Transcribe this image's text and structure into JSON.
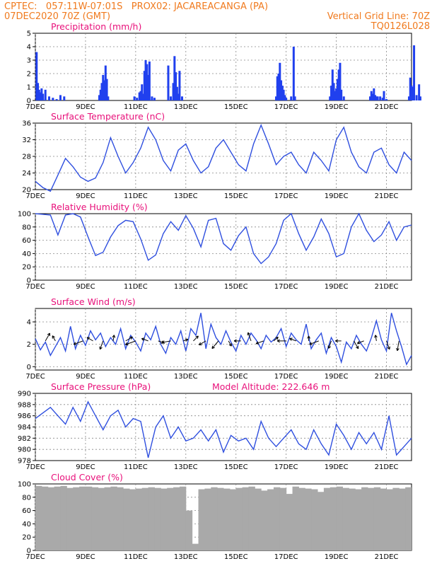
{
  "header": {
    "line1": "CPTEC:   057:11W-07:01S   PROX02: JACAREACANGA (PA)",
    "line2_left": "07DEC2020 70Z (GMT)",
    "line2_right": "Vertical Grid Line: 70Z",
    "line3_right": "TQ0126L028"
  },
  "x_days": [
    "7DEC",
    "9DEC",
    "11DEC",
    "13DEC",
    "15DEC",
    "17DEC",
    "19DEC",
    "21DEC"
  ],
  "colors": {
    "line": "#2f4fdf",
    "bar": "#2040ee",
    "cloud": "#a9a9a9",
    "title": "#e8107a",
    "header": "#f07a1e"
  },
  "chart_data": [
    {
      "type": "bar",
      "title": "Precipitation (mm/h)",
      "ylim": [
        0,
        5
      ],
      "yticks": [
        0,
        1,
        2,
        3,
        4,
        5
      ],
      "x": [
        0.05,
        0.1,
        0.15,
        0.2,
        0.25,
        0.3,
        0.4,
        0.55,
        0.7,
        0.85,
        1.0,
        1.15,
        2.55,
        2.6,
        2.65,
        2.7,
        2.75,
        2.8,
        2.85,
        2.9,
        3.95,
        4.05,
        4.15,
        4.2,
        4.25,
        4.3,
        4.35,
        4.4,
        4.45,
        4.5,
        4.55,
        4.65,
        4.75,
        5.3,
        5.4,
        5.5,
        5.55,
        5.6,
        5.65,
        5.7,
        5.75,
        5.85,
        9.6,
        9.65,
        9.7,
        9.75,
        9.8,
        9.85,
        9.9,
        9.95,
        10.0,
        10.2,
        10.3,
        10.35,
        11.75,
        11.8,
        11.85,
        11.9,
        11.95,
        12.0,
        12.05,
        12.1,
        12.15,
        12.2,
        12.3,
        13.35,
        13.4,
        13.45,
        13.5,
        13.55,
        13.6,
        13.65,
        13.75,
        13.85,
        13.9,
        14.0,
        14.9,
        14.95,
        15.0,
        15.05,
        15.1,
        15.2,
        15.3,
        15.35
      ],
      "values": [
        3.6,
        1.3,
        0.8,
        0.6,
        0.9,
        0.5,
        0.8,
        0.3,
        0.2,
        0.1,
        0.4,
        0.3,
        0.4,
        0.8,
        1.3,
        1.9,
        1.5,
        2.6,
        1.6,
        0.3,
        0.3,
        0.2,
        0.6,
        0.7,
        1.2,
        0.5,
        2.2,
        3.0,
        2.7,
        1.9,
        2.9,
        0.3,
        0.2,
        2.6,
        0.3,
        1.3,
        3.3,
        2.1,
        1.0,
        0.5,
        2.2,
        0.3,
        0.3,
        1.8,
        2.0,
        2.8,
        1.5,
        1.1,
        0.8,
        0.4,
        0.2,
        0.3,
        4.0,
        0.3,
        0.3,
        1.1,
        2.3,
        1.3,
        0.7,
        0.9,
        1.6,
        2.3,
        2.8,
        0.8,
        0.3,
        0.3,
        0.7,
        0.5,
        0.9,
        0.4,
        0.3,
        0.3,
        0.3,
        0.2,
        0.7,
        0.1,
        0.3,
        1.7,
        1.1,
        1.0,
        4.1,
        0.4,
        1.2,
        0.3
      ]
    },
    {
      "type": "line",
      "title": "Surface Temperature (nC)",
      "ylim": [
        20,
        36
      ],
      "yticks": [
        20,
        24,
        28,
        32,
        36
      ],
      "x": [
        0,
        0.3,
        0.6,
        0.9,
        1.2,
        1.5,
        1.8,
        2.1,
        2.4,
        2.7,
        3.0,
        3.3,
        3.6,
        3.9,
        4.2,
        4.5,
        4.8,
        5.1,
        5.4,
        5.7,
        6.0,
        6.3,
        6.6,
        6.9,
        7.2,
        7.5,
        7.8,
        8.1,
        8.4,
        8.7,
        9.0,
        9.3,
        9.6,
        9.9,
        10.2,
        10.5,
        10.8,
        11.1,
        11.4,
        11.7,
        12.0,
        12.3,
        12.6,
        12.9,
        13.2,
        13.5,
        13.8,
        14.1,
        14.4,
        14.7,
        15.0
      ],
      "values": [
        22,
        20.5,
        19.6,
        23.5,
        27.5,
        25.5,
        23,
        22,
        22.8,
        26.5,
        32.5,
        28,
        24,
        26.5,
        30,
        35,
        32,
        27,
        24.5,
        29.5,
        31,
        27,
        24,
        25.5,
        30,
        32,
        29,
        26,
        24.5,
        31,
        35.5,
        31,
        26,
        28,
        29,
        26,
        24,
        29,
        27,
        24.5,
        32,
        35,
        29,
        25.5,
        24,
        29,
        30,
        26,
        24,
        29,
        27
      ]
    },
    {
      "type": "line",
      "title": "Relative Humidity (%)",
      "ylim": [
        0,
        100
      ],
      "yticks": [
        0,
        20,
        40,
        60,
        80,
        100
      ],
      "x": [
        0,
        0.3,
        0.6,
        0.9,
        1.2,
        1.5,
        1.8,
        2.1,
        2.4,
        2.7,
        3.0,
        3.3,
        3.6,
        3.9,
        4.2,
        4.5,
        4.8,
        5.1,
        5.4,
        5.7,
        6.0,
        6.3,
        6.6,
        6.9,
        7.2,
        7.5,
        7.8,
        8.1,
        8.4,
        8.7,
        9.0,
        9.3,
        9.6,
        9.9,
        10.2,
        10.5,
        10.8,
        11.1,
        11.4,
        11.7,
        12.0,
        12.3,
        12.6,
        12.9,
        13.2,
        13.5,
        13.8,
        14.1,
        14.4,
        14.7,
        15.0
      ],
      "values": [
        100,
        99,
        98,
        68,
        98,
        100,
        95,
        65,
        37,
        42,
        65,
        82,
        90,
        88,
        62,
        30,
        38,
        70,
        88,
        75,
        97,
        78,
        50,
        90,
        93,
        55,
        45,
        67,
        80,
        40,
        25,
        35,
        55,
        90,
        100,
        70,
        45,
        65,
        92,
        70,
        35,
        40,
        80,
        100,
        75,
        58,
        68,
        88,
        60,
        80,
        83
      ]
    },
    {
      "type": "line",
      "title": "Surface Wind (m/s)",
      "ylim": [
        -0.3,
        5.2
      ],
      "yticks": [
        0,
        2,
        4
      ],
      "x": [
        0,
        0.2,
        0.4,
        0.6,
        0.8,
        1.0,
        1.2,
        1.4,
        1.6,
        1.8,
        2.0,
        2.2,
        2.4,
        2.6,
        2.8,
        3.0,
        3.2,
        3.4,
        3.6,
        3.8,
        4.0,
        4.2,
        4.4,
        4.6,
        4.8,
        5.0,
        5.2,
        5.4,
        5.6,
        5.8,
        6.0,
        6.2,
        6.4,
        6.6,
        6.8,
        7.0,
        7.2,
        7.4,
        7.6,
        7.8,
        8.0,
        8.2,
        8.4,
        8.6,
        8.8,
        9.0,
        9.2,
        9.4,
        9.6,
        9.8,
        10.0,
        10.2,
        10.4,
        10.6,
        10.8,
        11.0,
        11.2,
        11.4,
        11.6,
        11.8,
        12.0,
        12.2,
        12.4,
        12.6,
        12.8,
        13.0,
        13.2,
        13.4,
        13.6,
        13.8,
        14.0,
        14.2,
        14.4,
        14.6,
        14.8,
        15.0
      ],
      "values": [
        2.5,
        1.5,
        2.2,
        1.0,
        1.8,
        2.6,
        1.4,
        3.6,
        1.6,
        2.8,
        1.9,
        3.2,
        2.4,
        3.0,
        1.8,
        2.6,
        2.0,
        3.4,
        1.6,
        2.8,
        2.2,
        1.4,
        3.0,
        2.4,
        3.6,
        2.0,
        1.2,
        2.6,
        2.0,
        3.2,
        1.4,
        3.4,
        2.8,
        4.8,
        1.6,
        3.8,
        2.6,
        2.0,
        3.2,
        2.2,
        1.4,
        2.8,
        2.0,
        3.0,
        2.4,
        1.6,
        2.8,
        2.2,
        2.6,
        3.4,
        1.8,
        3.0,
        2.4,
        2.0,
        3.8,
        1.6,
        2.4,
        3.0,
        1.2,
        2.6,
        1.8,
        0.4,
        2.2,
        1.6,
        2.8,
        2.0,
        1.4,
        2.6,
        4.1,
        2.4,
        1.4,
        4.8,
        3.2,
        1.8,
        0.2,
        1.0
      ],
      "arrows_x": [
        0.4,
        0.8,
        1.9,
        2.3,
        2.7,
        3.1,
        3.6,
        4.0,
        4.5,
        4.9,
        5.4,
        5.9,
        6.3,
        6.8,
        7.3,
        7.7,
        8.2,
        8.6,
        9.1,
        9.5,
        10.0,
        10.4,
        10.9,
        11.3,
        11.8,
        12.2,
        12.7,
        13.1,
        13.6,
        14.0,
        14.5
      ],
      "arrows_dir_deg": [
        60,
        120,
        200,
        150,
        250,
        80,
        30,
        200,
        160,
        340,
        190,
        20,
        45,
        210,
        230,
        300,
        180,
        110,
        200,
        40,
        180,
        160,
        90,
        200,
        250,
        180,
        300,
        200,
        100,
        290,
        260
      ],
      "arrows_len": [
        0.9,
        0.6,
        1.0,
        0.7,
        0.9,
        0.6,
        0.8,
        1.1,
        0.7,
        0.6,
        0.9,
        0.5,
        0.7,
        0.8,
        1.0,
        0.6,
        0.7,
        0.9,
        0.8,
        0.6,
        0.9,
        0.7,
        0.5,
        1.0,
        0.8,
        0.6,
        0.9,
        0.7,
        0.6,
        0.9,
        1.0
      ]
    },
    {
      "type": "line",
      "title": "Surface Pressure (hPa)",
      "annotation": "Model Altitude: 222.646  m",
      "ylim": [
        978,
        990
      ],
      "yticks": [
        978,
        980,
        982,
        984,
        986,
        988,
        990
      ],
      "x": [
        0,
        0.3,
        0.6,
        0.9,
        1.2,
        1.5,
        1.8,
        2.1,
        2.4,
        2.7,
        3.0,
        3.3,
        3.6,
        3.9,
        4.2,
        4.5,
        4.8,
        5.1,
        5.4,
        5.7,
        6.0,
        6.3,
        6.6,
        6.9,
        7.2,
        7.5,
        7.8,
        8.1,
        8.4,
        8.7,
        9.0,
        9.3,
        9.6,
        9.9,
        10.2,
        10.5,
        10.8,
        11.1,
        11.4,
        11.7,
        12.0,
        12.3,
        12.6,
        12.9,
        13.2,
        13.5,
        13.8,
        14.1,
        14.4,
        14.7,
        15.0
      ],
      "values": [
        985.5,
        986.5,
        987.5,
        986,
        984.5,
        987.5,
        985,
        988.5,
        986,
        983.5,
        986,
        987,
        984,
        985.5,
        985,
        978.5,
        984,
        986,
        982,
        984,
        981.5,
        982,
        983.5,
        981.5,
        983.5,
        979.5,
        982.5,
        981.5,
        982,
        980,
        985,
        982,
        980.5,
        982,
        983.5,
        981,
        980,
        983.5,
        981,
        979,
        984.5,
        982.5,
        980,
        983,
        981,
        983,
        980,
        986,
        979,
        980.5,
        982
      ]
    },
    {
      "type": "bar",
      "title": "Cloud Cover (%)",
      "ylim": [
        0,
        100
      ],
      "yticks": [
        0,
        20,
        40,
        60,
        80,
        100
      ],
      "x": [
        0,
        0.25,
        0.5,
        0.75,
        1.0,
        1.25,
        1.5,
        1.75,
        2.0,
        2.25,
        2.5,
        2.75,
        3.0,
        3.25,
        3.5,
        3.75,
        4.0,
        4.25,
        4.5,
        4.75,
        5.0,
        5.25,
        5.5,
        5.75,
        6.0,
        6.25,
        6.5,
        6.75,
        7.0,
        7.25,
        7.5,
        7.75,
        8.0,
        8.25,
        8.5,
        8.75,
        9.0,
        9.25,
        9.5,
        9.75,
        10.0,
        10.25,
        10.5,
        10.75,
        11.0,
        11.25,
        11.5,
        11.75,
        12.0,
        12.25,
        12.5,
        12.75,
        13.0,
        13.25,
        13.5,
        13.75,
        14.0,
        14.25,
        14.5,
        14.75,
        15.0
      ],
      "values": [
        97,
        96,
        95,
        96,
        97,
        94,
        95,
        96,
        96,
        95,
        94,
        95,
        96,
        95,
        93,
        92,
        93,
        94,
        95,
        94,
        93,
        94,
        95,
        96,
        60,
        10,
        92,
        93,
        95,
        94,
        93,
        92,
        94,
        95,
        96,
        93,
        90,
        92,
        95,
        94,
        85,
        96,
        94,
        93,
        92,
        88,
        94,
        95,
        96,
        94,
        93,
        92,
        95,
        94,
        95,
        93,
        92,
        94,
        93,
        95,
        96
      ]
    }
  ]
}
